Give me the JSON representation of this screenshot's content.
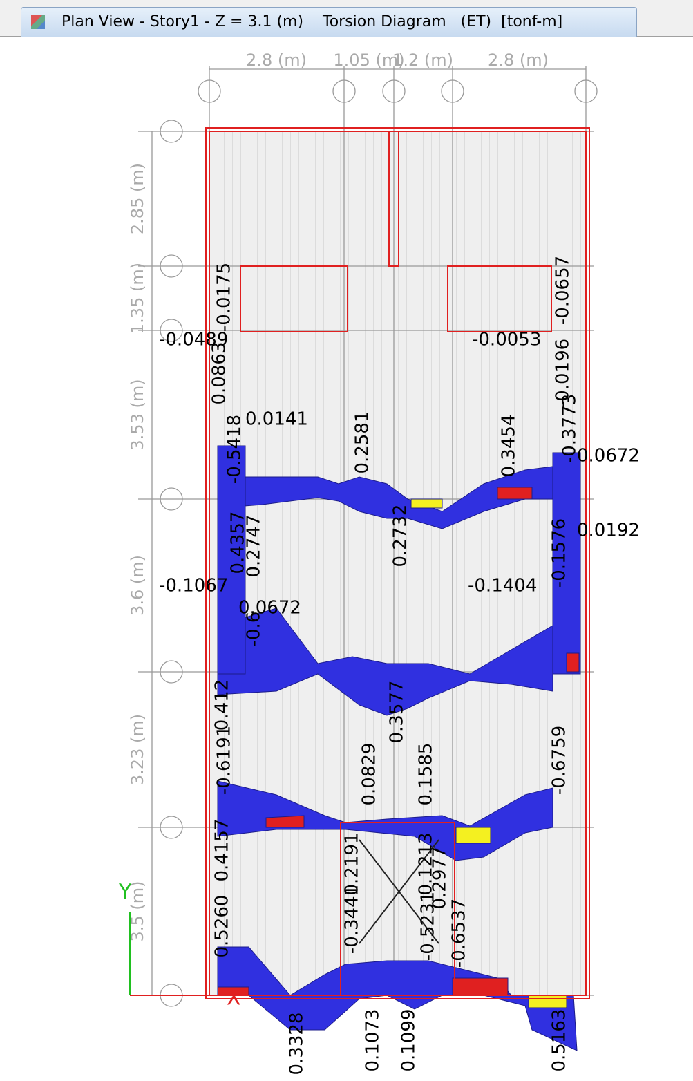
{
  "tab": {
    "title": "Plan View - Story1 - Z = 3.1 (m)    Torsion Diagram   (ET)  [tonf-m]"
  },
  "dimensions": {
    "x": [
      "2.8 (m)",
      "1.05 (m)",
      "1.2 (m)",
      "2.8 (m)"
    ],
    "y": [
      "2.85 (m)",
      "1.35 (m)",
      "3.53 (m)",
      "3.6 (m)",
      "3.23 (m)",
      "3.5 (m)"
    ]
  },
  "axes": {
    "x": "X",
    "y": "Y"
  },
  "values": [
    "-0.0489",
    "0.0141",
    "-0.0053",
    "0.0672",
    "0.0192",
    "-0.1067",
    "0.0672",
    "-0.1404",
    "-0.0175",
    "0.0863",
    "-0.5418",
    "0.2581",
    "0.3454",
    "-0.0657",
    "-0.0196",
    "-0.3773",
    "0.2732",
    "0.4357",
    "0.2747",
    "-0.6",
    "-0.1576",
    "0.3577",
    "0.412",
    "-0.6191",
    "0.0829",
    "0.1585",
    "-0.6759",
    "0.4157",
    "0.2191",
    "0.1213",
    "0.2977",
    "0.5260",
    "-0.3441",
    "-0.5231",
    "-0.6537",
    "0.3328",
    "0.1073",
    "0.1099",
    "0.5163"
  ]
}
